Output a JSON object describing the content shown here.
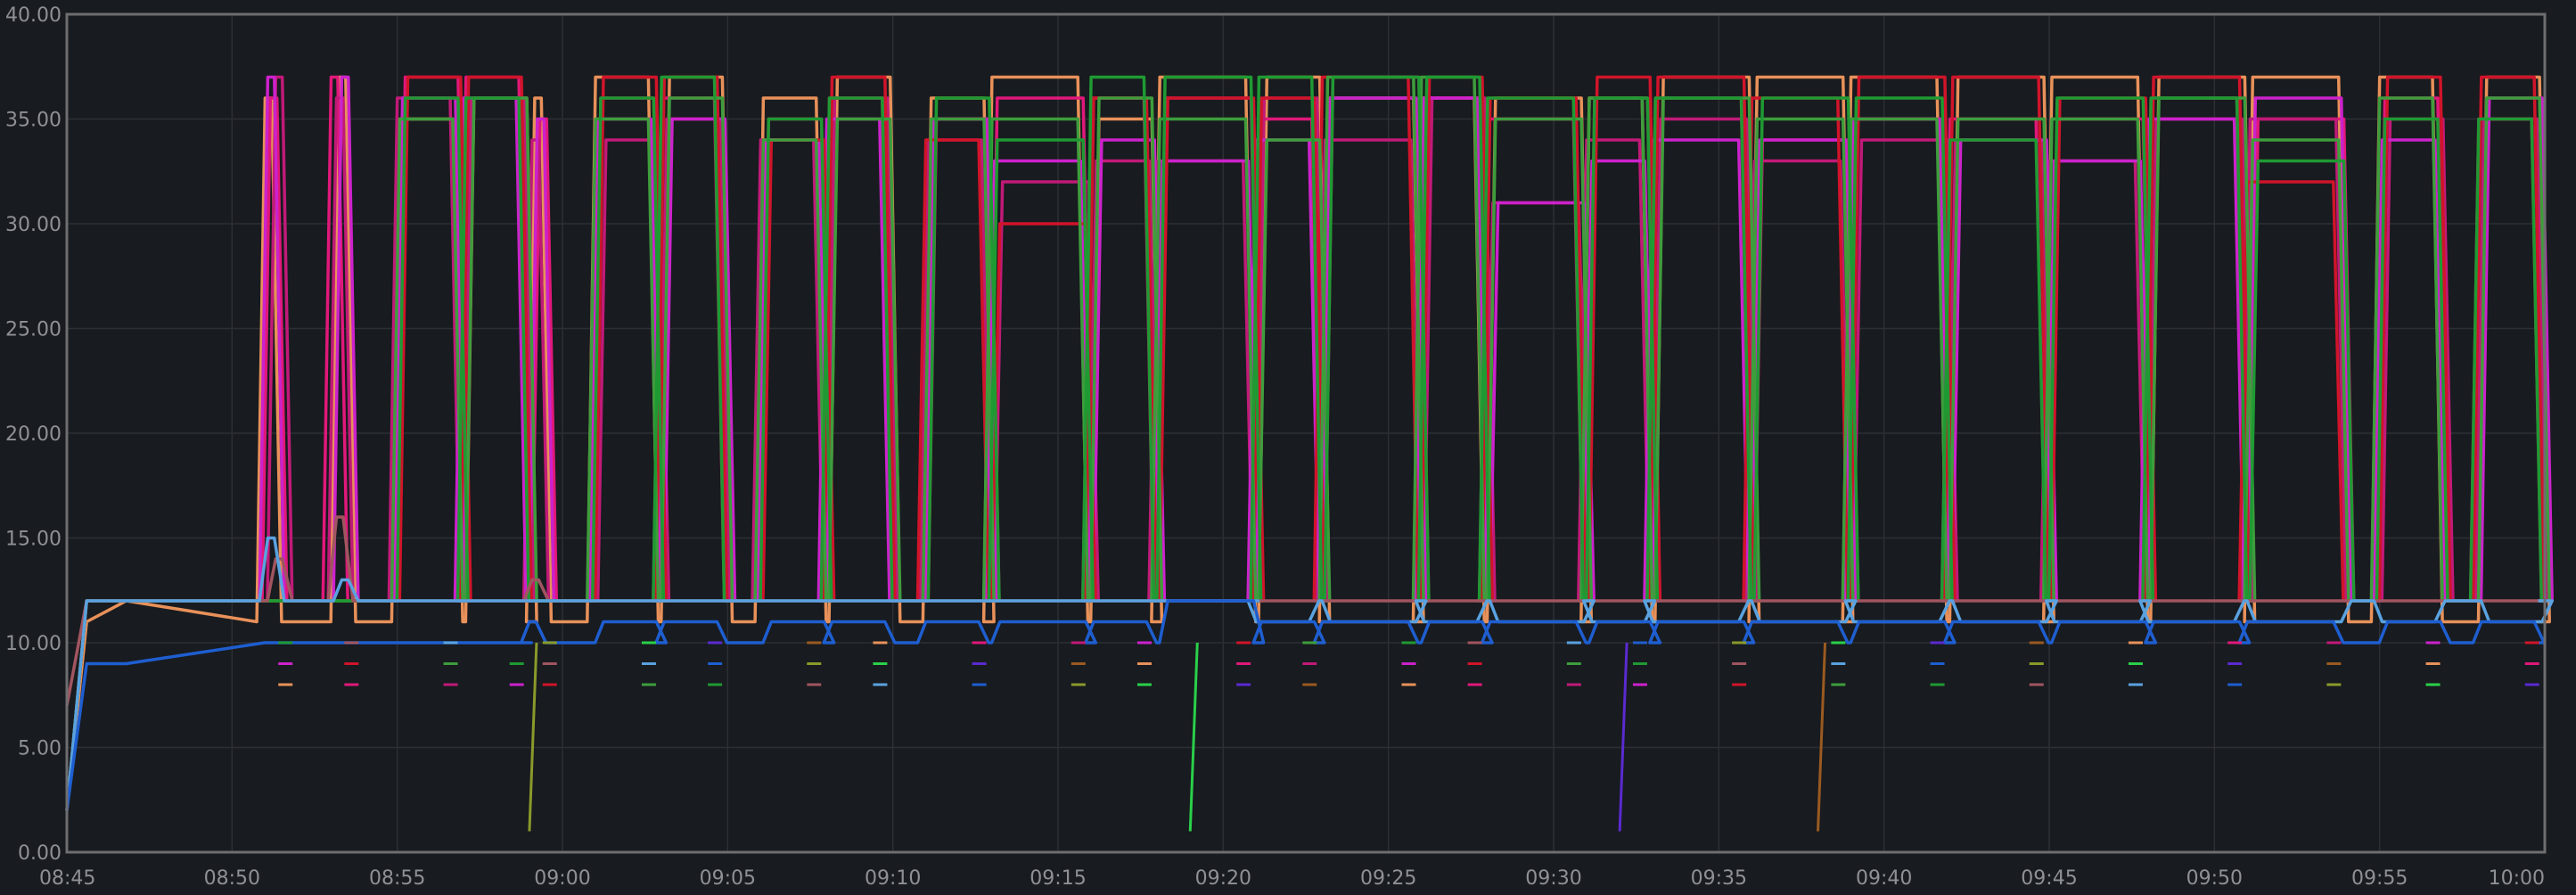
{
  "colors": {
    "background": "#181b1f",
    "plot_border": "#6e6e70",
    "grid": "#2c2f34",
    "tick_text": "#8e9096"
  },
  "chart_data": {
    "type": "line",
    "title": "",
    "xlabel": "",
    "ylabel": "",
    "x_range": [
      "08:45",
      "10:00"
    ],
    "ylim": [
      0,
      40
    ],
    "grid": true,
    "legend": "none",
    "x_ticks": [
      "08:45",
      "08:50",
      "08:55",
      "09:00",
      "09:05",
      "09:10",
      "09:15",
      "09:20",
      "09:25",
      "09:30",
      "09:35",
      "09:40",
      "09:45",
      "09:50",
      "09:55",
      "10:00"
    ],
    "y_ticks": [
      "0.00",
      "5.00",
      "10.00",
      "15.00",
      "20.00",
      "25.00",
      "30.00",
      "35.00",
      "40.00"
    ],
    "plateau_start_times": [
      "08:51",
      "08:53",
      "08:55",
      "08:57",
      "08:59",
      "09:01",
      "09:03",
      "09:06",
      "09:08",
      "09:11",
      "09:13",
      "09:16",
      "09:18",
      "09:21",
      "09:23",
      "09:26",
      "09:28",
      "09:31",
      "09:33",
      "09:36",
      "09:39",
      "09:42",
      "09:45",
      "09:48",
      "09:51",
      "09:55",
      "09:58"
    ],
    "plateau_end_times": [
      "08:51",
      "08:53",
      "08:56",
      "08:58",
      "08:59",
      "09:02",
      "09:04",
      "09:07",
      "09:09",
      "09:12",
      "09:15",
      "09:17",
      "09:20",
      "09:22",
      "09:25",
      "09:27",
      "09:30",
      "09:32",
      "09:35",
      "09:38",
      "09:41",
      "09:44",
      "09:47",
      "09:50",
      "09:53",
      "09:56",
      "09:59"
    ],
    "series": [
      {
        "color": "#e8915a",
        "values": [
          [
            2,
            11,
            12,
            11
          ],
          [
            36,
            37,
            35,
            36,
            36,
            37,
            37,
            36,
            37,
            36,
            37,
            35,
            37,
            37,
            36,
            36,
            36,
            36,
            37,
            37,
            37,
            37,
            37,
            37,
            37,
            37,
            37
          ]
        ]
      },
      {
        "color": "#e0187a",
        "values": [
          [
            2,
            12,
            12,
            12
          ],
          [
            36,
            37,
            37,
            37,
            35,
            36,
            36,
            35,
            36,
            35,
            36,
            36,
            36,
            35,
            37,
            36,
            35,
            36,
            36,
            34,
            35,
            35,
            35,
            36,
            35,
            36,
            35
          ]
        ]
      },
      {
        "color": "#c01a78",
        "values": [
          [
            2,
            12,
            12,
            12
          ],
          [
            37,
            36,
            36,
            36,
            34,
            34,
            35,
            34,
            36,
            34,
            32,
            33,
            33,
            36,
            34,
            36,
            31,
            34,
            35,
            33,
            34,
            34,
            33,
            35,
            35,
            35,
            35
          ]
        ]
      },
      {
        "color": "#cc22cc",
        "values": [
          [
            2,
            12,
            12,
            12
          ],
          [
            37,
            37,
            36,
            36,
            35,
            35,
            35,
            34,
            35,
            35,
            33,
            34,
            33,
            34,
            36,
            36,
            31,
            33,
            34,
            34,
            35,
            34,
            33,
            35,
            36,
            34,
            36
          ]
        ]
      },
      {
        "color": "#d0142a",
        "values": [
          [
            2,
            12,
            12,
            12
          ],
          [
            12,
            12,
            37,
            37,
            12,
            37,
            37,
            34,
            37,
            34,
            30,
            36,
            36,
            36,
            37,
            37,
            36,
            37,
            37,
            36,
            37,
            37,
            36,
            37,
            32,
            37,
            37
          ]
        ]
      },
      {
        "color": "#3e9d3c",
        "values": [
          [
            2,
            12,
            12,
            12
          ],
          [
            12,
            12,
            35,
            36,
            12,
            35,
            36,
            34,
            35,
            35,
            35,
            36,
            35,
            34,
            37,
            37,
            35,
            36,
            36,
            35,
            35,
            35,
            35,
            36,
            34,
            36,
            36
          ]
        ]
      },
      {
        "color": "#1f9a33",
        "values": [
          [
            2,
            12,
            12,
            12
          ],
          [
            12,
            12,
            36,
            36,
            12,
            36,
            37,
            35,
            36,
            36,
            34,
            37,
            37,
            37,
            37,
            37,
            36,
            36,
            36,
            36,
            36,
            34,
            36,
            36,
            33,
            35,
            35
          ]
        ]
      },
      {
        "color": "#a05560",
        "values": [
          [
            7,
            12,
            12,
            12
          ],
          [
            14,
            16,
            12,
            12,
            13,
            12,
            12,
            12,
            12,
            12,
            12,
            12,
            12,
            12,
            12,
            12,
            12,
            12,
            12,
            12,
            12,
            12,
            12,
            12,
            12,
            12,
            12
          ]
        ]
      },
      {
        "color": "#5aa2e0",
        "values": [
          [
            2,
            12,
            12,
            12
          ],
          [
            15,
            13,
            12,
            12,
            12,
            12,
            12,
            12,
            12,
            12,
            12,
            12,
            12,
            11,
            11,
            11,
            11,
            11,
            11,
            11,
            11,
            11,
            11,
            11,
            11,
            11,
            11
          ]
        ]
      },
      {
        "color": "#1e5ed0",
        "values": [
          [
            2,
            9,
            9,
            10
          ],
          [
            10,
            10,
            10,
            10,
            11,
            11,
            11,
            11,
            11,
            11,
            11,
            11,
            12,
            11,
            11,
            11,
            11,
            11,
            11,
            11,
            11,
            11,
            11,
            11,
            11,
            11,
            11
          ]
        ]
      }
    ],
    "dropouts": [
      {
        "time": "08:59",
        "color": "#8a9a2a",
        "low": 1,
        "high": 10
      },
      {
        "time": "09:19",
        "color": "#2ad04a",
        "low": 1,
        "high": 10
      },
      {
        "time": "09:32",
        "color": "#5a2ad0",
        "low": 1,
        "high": 10
      },
      {
        "time": "09:38",
        "color": "#9a5a20",
        "low": 1,
        "high": 10
      }
    ],
    "short_segments_y_values": [
      8,
      9,
      10
    ]
  }
}
